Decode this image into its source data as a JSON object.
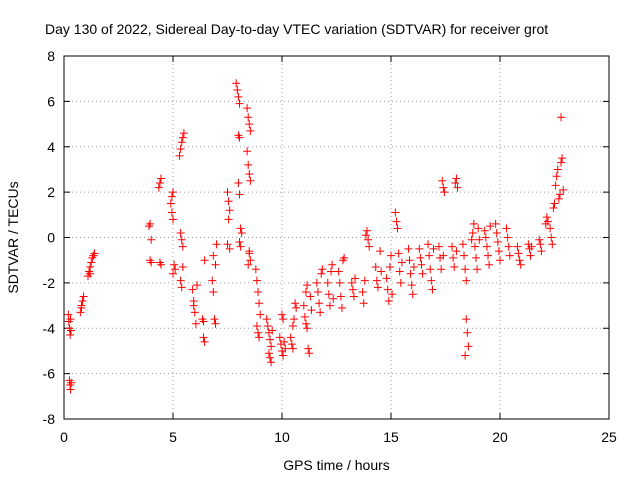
{
  "chart_data": {
    "type": "scatter",
    "title": "Day 130 of 2022, Sidereal Day-to-day VTEC variation (SDTVAR) for receiver grot",
    "xlabel": "GPS time / hours",
    "ylabel": "SDTVAR / TECUs",
    "xlim": [
      0,
      25
    ],
    "ylim": [
      -8,
      8
    ],
    "xticks": [
      0,
      5,
      10,
      15,
      20,
      25
    ],
    "yticks": [
      -8,
      -6,
      -4,
      -2,
      0,
      2,
      4,
      6,
      8
    ],
    "xtick_labels": [
      "0",
      "5",
      "10",
      "15",
      "20",
      "25"
    ],
    "ytick_labels": [
      "-8",
      "-6",
      "-4",
      "-2",
      "0",
      "2",
      "4",
      "6",
      "8"
    ],
    "grid": true,
    "marker": "+",
    "color": "#ff0000",
    "series": [
      {
        "name": "SDTVAR",
        "points": [
          [
            0.2,
            -3.4
          ],
          [
            0.22,
            -3.7
          ],
          [
            0.25,
            -4.0
          ],
          [
            0.28,
            -4.3
          ],
          [
            0.3,
            -3.6
          ],
          [
            0.32,
            -4.1
          ],
          [
            0.25,
            -6.3
          ],
          [
            0.28,
            -6.5
          ],
          [
            0.3,
            -6.7
          ],
          [
            0.33,
            -6.4
          ],
          [
            0.75,
            -3.3
          ],
          [
            0.8,
            -3.0
          ],
          [
            0.85,
            -2.8
          ],
          [
            0.9,
            -2.6
          ],
          [
            0.8,
            -3.1
          ],
          [
            1.1,
            -1.7
          ],
          [
            1.15,
            -1.5
          ],
          [
            1.2,
            -1.3
          ],
          [
            1.25,
            -1.1
          ],
          [
            1.3,
            -0.9
          ],
          [
            1.35,
            -0.8
          ],
          [
            1.4,
            -0.7
          ],
          [
            1.2,
            -1.6
          ],
          [
            3.9,
            0.5
          ],
          [
            3.95,
            0.6
          ],
          [
            4.0,
            -0.1
          ],
          [
            3.95,
            -1.0
          ],
          [
            4.0,
            -1.1
          ],
          [
            4.35,
            2.2
          ],
          [
            4.4,
            2.4
          ],
          [
            4.45,
            2.6
          ],
          [
            4.4,
            -1.1
          ],
          [
            4.45,
            -1.2
          ],
          [
            4.9,
            1.5
          ],
          [
            4.95,
            1.8
          ],
          [
            5.0,
            2.0
          ],
          [
            4.95,
            1.1
          ],
          [
            5.0,
            0.8
          ],
          [
            5.05,
            -1.2
          ],
          [
            5.1,
            -1.4
          ],
          [
            5.0,
            -1.6
          ],
          [
            5.3,
            3.6
          ],
          [
            5.35,
            3.9
          ],
          [
            5.4,
            4.2
          ],
          [
            5.45,
            4.4
          ],
          [
            5.5,
            4.6
          ],
          [
            5.35,
            0.2
          ],
          [
            5.4,
            -0.1
          ],
          [
            5.45,
            -0.4
          ],
          [
            5.35,
            -1.9
          ],
          [
            5.4,
            -2.2
          ],
          [
            5.45,
            -1.3
          ],
          [
            5.9,
            -2.3
          ],
          [
            5.95,
            -2.8
          ],
          [
            6.0,
            -3.3
          ],
          [
            6.05,
            -3.8
          ],
          [
            6.1,
            -2.1
          ],
          [
            5.95,
            -3.0
          ],
          [
            6.4,
            -4.4
          ],
          [
            6.45,
            -4.6
          ],
          [
            6.35,
            -3.6
          ],
          [
            6.4,
            -3.7
          ],
          [
            6.45,
            -1.0
          ],
          [
            6.8,
            -1.9
          ],
          [
            6.85,
            -2.4
          ],
          [
            6.9,
            -3.6
          ],
          [
            6.95,
            -3.8
          ],
          [
            7.0,
            -0.3
          ],
          [
            6.95,
            -1.2
          ],
          [
            6.85,
            -0.8
          ],
          [
            7.5,
            2.0
          ],
          [
            7.55,
            1.6
          ],
          [
            7.6,
            1.2
          ],
          [
            7.55,
            0.8
          ],
          [
            7.5,
            -0.3
          ],
          [
            7.6,
            -0.5
          ],
          [
            7.9,
            6.8
          ],
          [
            7.95,
            6.5
          ],
          [
            8.0,
            6.2
          ],
          [
            8.05,
            5.9
          ],
          [
            8.0,
            4.5
          ],
          [
            8.05,
            4.4
          ],
          [
            8.0,
            2.4
          ],
          [
            8.05,
            1.9
          ],
          [
            8.1,
            0.4
          ],
          [
            8.15,
            0.2
          ],
          [
            8.05,
            -0.2
          ],
          [
            8.1,
            -0.4
          ],
          [
            8.4,
            5.7
          ],
          [
            8.45,
            5.3
          ],
          [
            8.5,
            5.0
          ],
          [
            8.55,
            4.7
          ],
          [
            8.4,
            3.8
          ],
          [
            8.45,
            3.2
          ],
          [
            8.5,
            2.8
          ],
          [
            8.55,
            2.5
          ],
          [
            8.5,
            -0.7
          ],
          [
            8.55,
            -1.0
          ],
          [
            8.45,
            -1.2
          ],
          [
            8.5,
            -0.6
          ],
          [
            8.8,
            -1.4
          ],
          [
            8.85,
            -1.9
          ],
          [
            8.9,
            -2.4
          ],
          [
            8.95,
            -2.9
          ],
          [
            9.0,
            -3.4
          ],
          [
            8.85,
            -3.9
          ],
          [
            8.9,
            -4.2
          ],
          [
            8.95,
            -4.4
          ],
          [
            9.3,
            -3.6
          ],
          [
            9.35,
            -3.9
          ],
          [
            9.4,
            -4.2
          ],
          [
            9.45,
            -4.5
          ],
          [
            9.5,
            -4.8
          ],
          [
            9.4,
            -5.1
          ],
          [
            9.45,
            -5.3
          ],
          [
            9.5,
            -5.5
          ],
          [
            9.55,
            -4.1
          ],
          [
            9.9,
            -4.4
          ],
          [
            9.95,
            -4.7
          ],
          [
            10.0,
            -5.0
          ],
          [
            10.05,
            -5.2
          ],
          [
            10.1,
            -4.6
          ],
          [
            10.15,
            -4.9
          ],
          [
            10.0,
            -3.4
          ],
          [
            10.05,
            -3.6
          ],
          [
            10.4,
            -4.4
          ],
          [
            10.45,
            -4.7
          ],
          [
            10.5,
            -3.9
          ],
          [
            10.55,
            -3.6
          ],
          [
            10.6,
            -2.9
          ],
          [
            10.65,
            -3.1
          ],
          [
            10.5,
            -4.9
          ],
          [
            11.0,
            -3.0
          ],
          [
            11.05,
            -3.5
          ],
          [
            11.1,
            -3.8
          ],
          [
            11.15,
            -4.0
          ],
          [
            11.2,
            -4.9
          ],
          [
            11.25,
            -5.1
          ],
          [
            11.1,
            -2.4
          ],
          [
            11.15,
            -2.1
          ],
          [
            11.3,
            -2.6
          ],
          [
            11.35,
            -3.2
          ],
          [
            11.6,
            -2.0
          ],
          [
            11.65,
            -2.4
          ],
          [
            11.7,
            -2.9
          ],
          [
            11.75,
            -3.3
          ],
          [
            11.8,
            -1.6
          ],
          [
            11.85,
            -1.4
          ],
          [
            12.1,
            -2.0
          ],
          [
            12.15,
            -2.5
          ],
          [
            12.2,
            -3.0
          ],
          [
            12.25,
            -1.5
          ],
          [
            12.3,
            -1.2
          ],
          [
            12.35,
            -2.7
          ],
          [
            12.6,
            -1.5
          ],
          [
            12.65,
            -2.0
          ],
          [
            12.7,
            -2.6
          ],
          [
            12.75,
            -3.1
          ],
          [
            12.8,
            -1.0
          ],
          [
            12.85,
            -0.9
          ],
          [
            13.2,
            -2.0
          ],
          [
            13.25,
            -2.3
          ],
          [
            13.3,
            -2.6
          ],
          [
            13.35,
            -1.8
          ],
          [
            13.7,
            -2.4
          ],
          [
            13.75,
            -2.9
          ],
          [
            13.8,
            -1.9
          ],
          [
            13.85,
            0.1
          ],
          [
            13.9,
            0.3
          ],
          [
            13.95,
            -0.1
          ],
          [
            14.0,
            -0.4
          ],
          [
            14.3,
            -1.3
          ],
          [
            14.35,
            -1.9
          ],
          [
            14.4,
            -2.2
          ],
          [
            14.5,
            -0.6
          ],
          [
            14.55,
            -1.5
          ],
          [
            14.8,
            -1.8
          ],
          [
            14.85,
            -2.3
          ],
          [
            14.9,
            -2.8
          ],
          [
            14.95,
            -1.3
          ],
          [
            15.0,
            -0.8
          ],
          [
            15.05,
            -2.5
          ],
          [
            15.2,
            1.1
          ],
          [
            15.25,
            0.7
          ],
          [
            15.3,
            0.4
          ],
          [
            15.35,
            -0.7
          ],
          [
            15.4,
            -1.5
          ],
          [
            15.45,
            -2.0
          ],
          [
            15.5,
            -1.1
          ],
          [
            15.8,
            -0.5
          ],
          [
            15.85,
            -1.0
          ],
          [
            15.9,
            -1.6
          ],
          [
            15.95,
            -2.1
          ],
          [
            16.0,
            -2.5
          ],
          [
            16.05,
            -1.3
          ],
          [
            16.3,
            -0.5
          ],
          [
            16.35,
            -0.9
          ],
          [
            16.4,
            -1.2
          ],
          [
            16.45,
            -1.6
          ],
          [
            16.7,
            -0.3
          ],
          [
            16.75,
            -0.8
          ],
          [
            16.8,
            -1.4
          ],
          [
            16.85,
            -1.9
          ],
          [
            16.9,
            -2.3
          ],
          [
            16.95,
            -0.5
          ],
          [
            17.2,
            -0.4
          ],
          [
            17.25,
            -0.9
          ],
          [
            17.3,
            -1.4
          ],
          [
            17.35,
            2.5
          ],
          [
            17.4,
            2.2
          ],
          [
            17.45,
            2.0
          ],
          [
            17.4,
            -0.8
          ],
          [
            17.8,
            -0.4
          ],
          [
            17.85,
            -0.9
          ],
          [
            17.9,
            -1.3
          ],
          [
            17.95,
            2.4
          ],
          [
            18.0,
            2.6
          ],
          [
            18.05,
            2.2
          ],
          [
            18.0,
            -0.6
          ],
          [
            18.3,
            -0.3
          ],
          [
            18.35,
            -0.8
          ],
          [
            18.4,
            -1.4
          ],
          [
            18.45,
            -3.6
          ],
          [
            18.5,
            -4.2
          ],
          [
            18.55,
            -4.8
          ],
          [
            18.4,
            -5.2
          ],
          [
            18.45,
            -1.9
          ],
          [
            18.7,
            -0.1
          ],
          [
            18.75,
            0.2
          ],
          [
            18.8,
            0.6
          ],
          [
            18.85,
            -0.4
          ],
          [
            18.9,
            -0.9
          ],
          [
            18.95,
            -1.4
          ],
          [
            19.0,
            0.4
          ],
          [
            19.05,
            -0.1
          ],
          [
            19.3,
            0.3
          ],
          [
            19.35,
            0.0
          ],
          [
            19.4,
            -0.4
          ],
          [
            19.45,
            -0.8
          ],
          [
            19.5,
            -1.2
          ],
          [
            19.55,
            0.5
          ],
          [
            19.8,
            0.6
          ],
          [
            19.85,
            0.2
          ],
          [
            19.9,
            -0.2
          ],
          [
            19.95,
            -0.6
          ],
          [
            20.0,
            -1.0
          ],
          [
            20.3,
            0.4
          ],
          [
            20.35,
            0.0
          ],
          [
            20.4,
            -0.4
          ],
          [
            20.45,
            -0.8
          ],
          [
            20.8,
            -0.4
          ],
          [
            20.85,
            -0.7
          ],
          [
            20.9,
            -1.0
          ],
          [
            20.95,
            -1.2
          ],
          [
            21.3,
            -0.3
          ],
          [
            21.35,
            -0.5
          ],
          [
            21.4,
            -0.8
          ],
          [
            21.45,
            -0.4
          ],
          [
            21.8,
            -0.1
          ],
          [
            21.85,
            -0.3
          ],
          [
            21.9,
            -0.6
          ],
          [
            22.1,
            0.6
          ],
          [
            22.15,
            0.9
          ],
          [
            22.2,
            0.7
          ],
          [
            22.3,
            0.4
          ],
          [
            22.35,
            0.0
          ],
          [
            22.4,
            -0.3
          ],
          [
            22.45,
            1.3
          ],
          [
            22.5,
            1.5
          ],
          [
            22.55,
            2.3
          ],
          [
            22.6,
            2.7
          ],
          [
            22.65,
            3.0
          ],
          [
            22.7,
            1.7
          ],
          [
            22.75,
            1.9
          ],
          [
            22.8,
            3.3
          ],
          [
            22.85,
            3.5
          ],
          [
            22.9,
            2.1
          ],
          [
            22.8,
            5.3
          ]
        ]
      }
    ]
  }
}
